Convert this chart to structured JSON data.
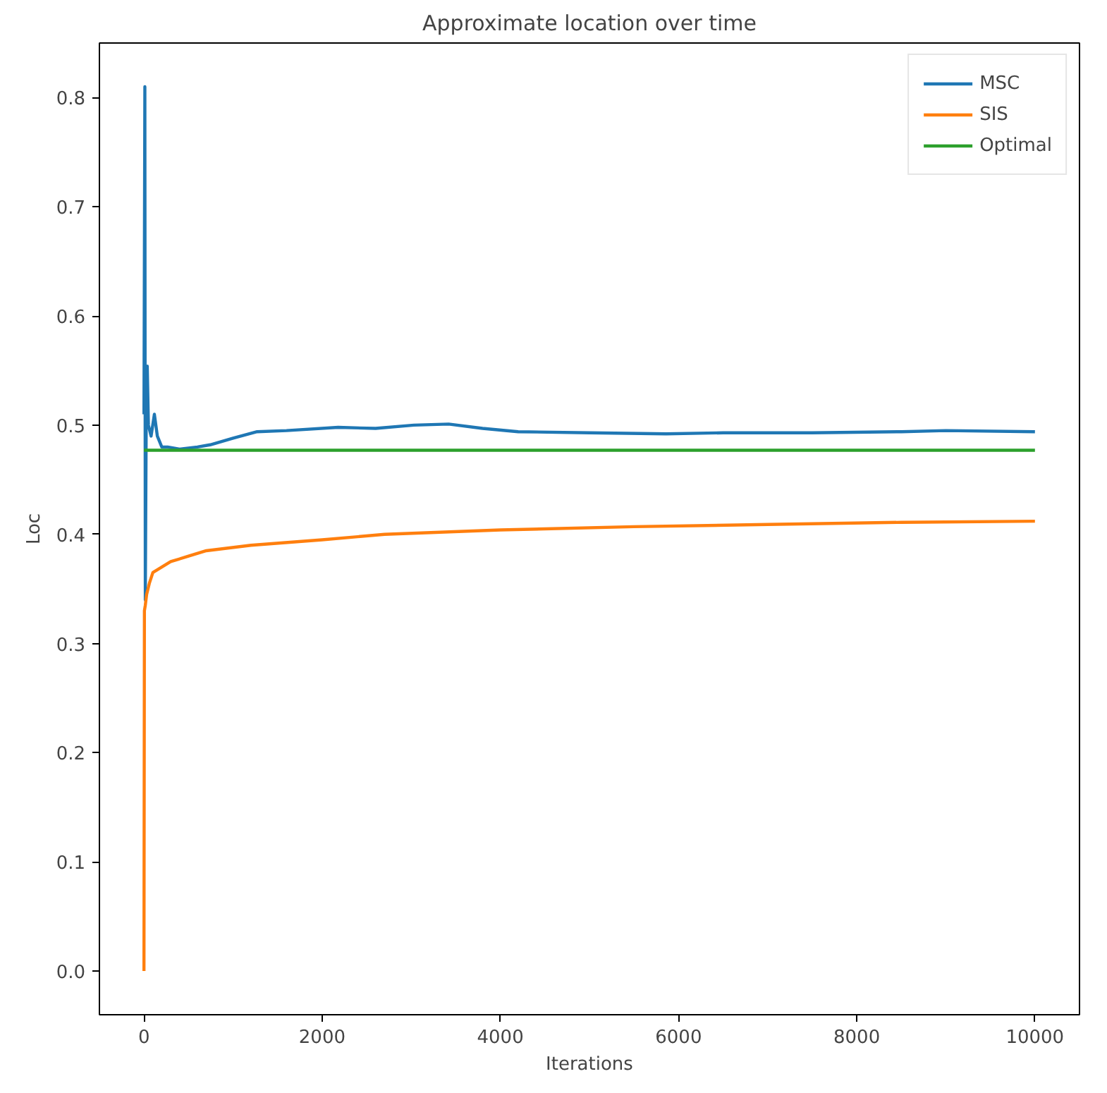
{
  "chart_data": {
    "type": "line",
    "title": "Approximate location over time",
    "xlabel": "Iterations",
    "ylabel": "Loc",
    "xlim": [
      -500,
      10500
    ],
    "ylim": [
      -0.04,
      0.85
    ],
    "xticks": [
      0,
      2000,
      4000,
      6000,
      8000,
      10000
    ],
    "yticks": [
      {
        "value": 0,
        "label": "0.0"
      },
      {
        "value": 0.1,
        "label": "0.1"
      },
      {
        "value": 0.2,
        "label": "0.2"
      },
      {
        "value": 0.3,
        "label": "0.3"
      },
      {
        "value": 0.4,
        "label": "0.4"
      },
      {
        "value": 0.5,
        "label": "0.5"
      },
      {
        "value": 0.6,
        "label": "0.6"
      },
      {
        "value": 0.7,
        "label": "0.7"
      },
      {
        "value": 0.8,
        "label": "0.8"
      }
    ],
    "grid": false,
    "legend": "top right",
    "series": [
      {
        "name": "MSC",
        "color": "#1f77b4",
        "x": [
          0,
          10,
          15,
          25,
          37,
          50,
          80,
          117,
          150,
          200,
          265,
          400,
          600,
          743,
          1000,
          1270,
          1600,
          2180,
          2600,
          3030,
          3420,
          3800,
          4200,
          5000,
          5860,
          6500,
          7500,
          8500,
          9000,
          10000
        ],
        "values": [
          0.51,
          0.81,
          0.34,
          0.5,
          0.554,
          0.5,
          0.49,
          0.51,
          0.49,
          0.48,
          0.48,
          0.478,
          0.48,
          0.482,
          0.488,
          0.494,
          0.495,
          0.498,
          0.497,
          0.5,
          0.501,
          0.497,
          0.494,
          0.493,
          0.492,
          0.493,
          0.493,
          0.494,
          0.495,
          0.494
        ]
      },
      {
        "name": "SIS",
        "color": "#ff7f0e",
        "x": [
          0,
          5,
          15,
          30,
          60,
          100,
          200,
          300,
          500,
          700,
          1200,
          2000,
          2700,
          4000,
          5500,
          7000,
          8500,
          10000
        ],
        "values": [
          0,
          0.33,
          0.335,
          0.345,
          0.355,
          0.365,
          0.37,
          0.375,
          0.38,
          0.385,
          0.39,
          0.395,
          0.4,
          0.404,
          0.407,
          0.409,
          0.411,
          0.412
        ]
      },
      {
        "name": "Optimal",
        "color": "#2ca02c",
        "x": [
          0,
          10000
        ],
        "values": [
          0.477,
          0.477
        ]
      }
    ]
  }
}
